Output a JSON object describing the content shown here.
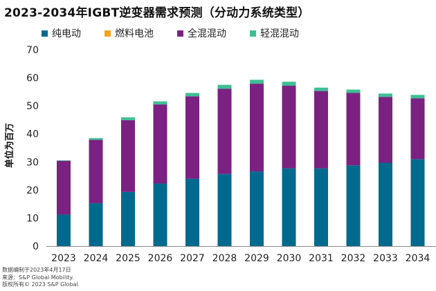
{
  "title": "2023-2034年IGBT逆变器需求预测（分动力系统类型）",
  "footnotes": [
    "数据编制于2023年4月17日",
    "来源：S&P Global Mobility.",
    "版权所有© 2023 S&P Global."
  ],
  "chart_data": {
    "type": "bar",
    "stacked": true,
    "title": "2023-2034年IGBT逆变器需求预测（分动力系统类型）",
    "xlabel": "",
    "ylabel": "单位为百万",
    "ylim": [
      0,
      70
    ],
    "yticks": [
      0,
      10,
      20,
      30,
      40,
      50,
      60,
      70
    ],
    "grid": false,
    "legend_position": "top",
    "categories": [
      "2023",
      "2024",
      "2025",
      "2026",
      "2027",
      "2028",
      "2029",
      "2030",
      "2031",
      "2032",
      "2033",
      "2034"
    ],
    "series": [
      {
        "name": "纯电动",
        "color": "#006a8e",
        "values": [
          11.2,
          15.3,
          19.3,
          22.3,
          24.0,
          25.7,
          26.6,
          27.7,
          27.7,
          28.8,
          29.7,
          31.0
        ]
      },
      {
        "name": "燃料电池",
        "color": "#f7a21b",
        "values": [
          0.0,
          0.0,
          0.0,
          0.0,
          0.0,
          0.0,
          0.0,
          0.0,
          0.0,
          0.0,
          0.0,
          0.0
        ]
      },
      {
        "name": "全混混动",
        "color": "#7b2182",
        "values": [
          19.2,
          22.6,
          25.6,
          28.2,
          29.4,
          30.4,
          31.3,
          29.5,
          27.6,
          25.8,
          23.5,
          21.7
        ]
      },
      {
        "name": "轻混混动",
        "color": "#3dbf94",
        "values": [
          0.2,
          0.6,
          1.0,
          1.1,
          1.2,
          1.4,
          1.4,
          1.4,
          1.2,
          1.2,
          1.2,
          1.2
        ]
      }
    ]
  }
}
